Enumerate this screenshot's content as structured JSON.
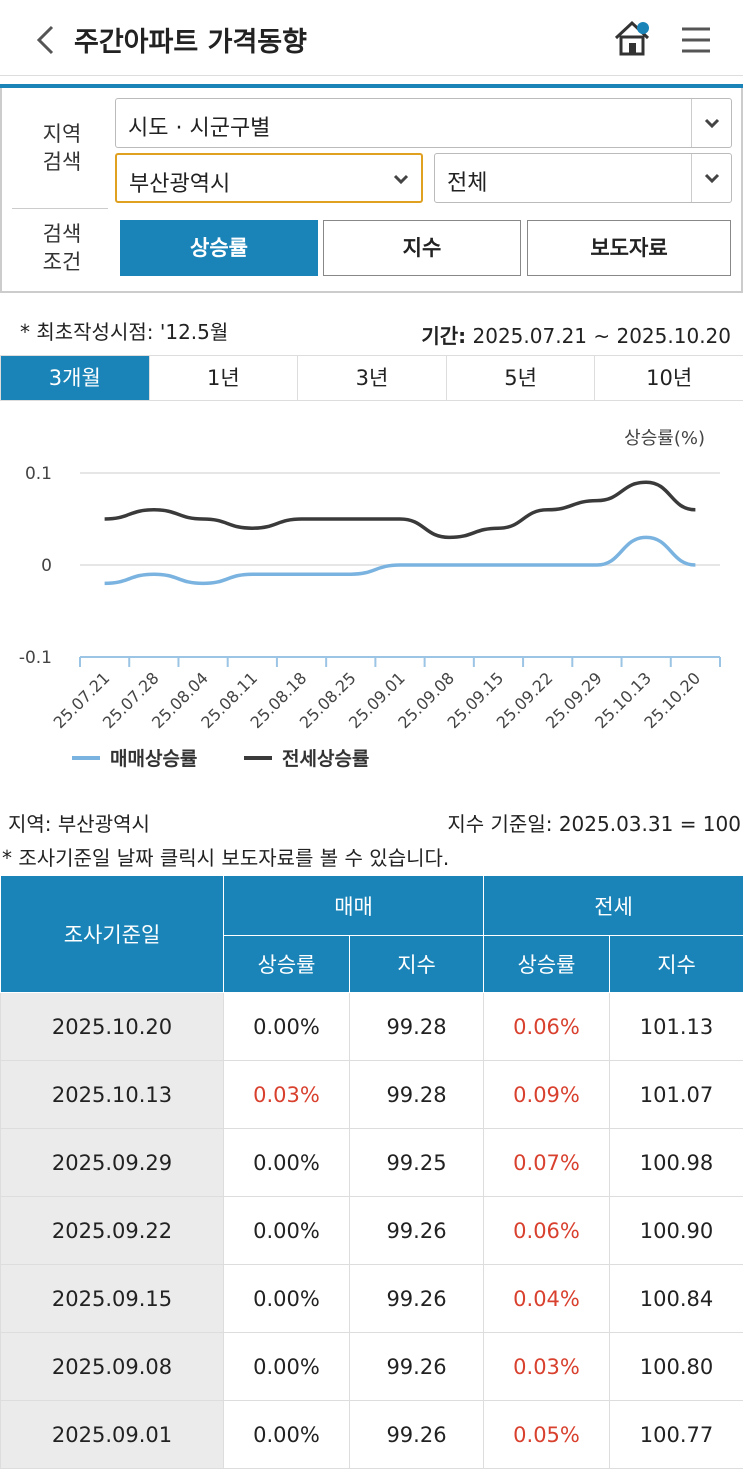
{
  "header": {
    "title": "주간아파트 가격동향"
  },
  "search": {
    "region_label": [
      "지역",
      "검색"
    ],
    "select_scope": "시도 · 시군구별",
    "select_city": "부산광역시",
    "select_district": "전체",
    "condition_label": [
      "검색",
      "조건"
    ],
    "buttons": [
      "상승률",
      "지수",
      "보도자료"
    ]
  },
  "note": "* 최초작성시점: '12.5월",
  "period_label": "기간:",
  "period_value": "2025.07.21 ~ 2025.10.20",
  "tabs": [
    "3개월",
    "1년",
    "3년",
    "5년",
    "10년"
  ],
  "chart_data": {
    "type": "line",
    "y_label": "상승률(%)",
    "categories": [
      "25.07.21",
      "25.07.28",
      "25.08.04",
      "25.08.11",
      "25.08.18",
      "25.08.25",
      "25.09.01",
      "25.09.08",
      "25.09.15",
      "25.09.22",
      "25.09.29",
      "25.10.13",
      "25.10.20"
    ],
    "series": [
      {
        "name": "매매상승률",
        "color": "#7ab3e0",
        "values": [
          -0.02,
          -0.01,
          -0.02,
          -0.01,
          -0.01,
          -0.01,
          0,
          0,
          0,
          0,
          0,
          0.03,
          0
        ]
      },
      {
        "name": "전세상승률",
        "color": "#3a3a3a",
        "values": [
          0.05,
          0.06,
          0.05,
          0.04,
          0.05,
          0.05,
          0.05,
          0.03,
          0.04,
          0.06,
          0.07,
          0.09,
          0.06
        ]
      }
    ],
    "ylim": [
      -0.1,
      0.1
    ],
    "yticks": [
      -0.1,
      0,
      0.1
    ],
    "grid": true,
    "legend": "bottom"
  },
  "info": {
    "region": "지역: 부산광역시",
    "base_date": "지수 기준일: 2025.03.31 = 100",
    "note": "* 조사기준일 날짜 클릭시 보도자료를 볼 수 있습니다."
  },
  "table": {
    "header": {
      "date": "조사기준일",
      "sale": "매매",
      "jeonse": "전세",
      "sub": [
        "상승률",
        "지수",
        "상승률",
        "지수"
      ]
    },
    "rows": [
      [
        "2025.10.20",
        "0.00%",
        "99.28",
        "0.06%",
        "101.13"
      ],
      [
        "2025.10.13",
        "0.03%",
        "99.28",
        "0.09%",
        "101.07"
      ],
      [
        "2025.09.29",
        "0.00%",
        "99.25",
        "0.07%",
        "100.98"
      ],
      [
        "2025.09.22",
        "0.00%",
        "99.26",
        "0.06%",
        "100.90"
      ],
      [
        "2025.09.15",
        "0.00%",
        "99.26",
        "0.04%",
        "100.84"
      ],
      [
        "2025.09.08",
        "0.00%",
        "99.26",
        "0.03%",
        "100.80"
      ],
      [
        "2025.09.01",
        "0.00%",
        "99.26",
        "0.05%",
        "100.77"
      ]
    ]
  }
}
